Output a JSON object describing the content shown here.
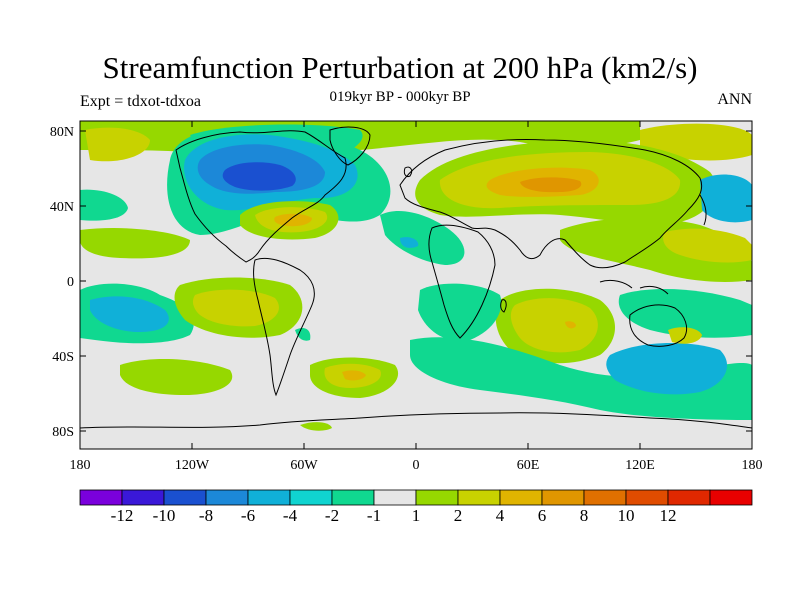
{
  "title": "Streamfunction Perturbation at 200 hPa (km2/s)",
  "subtitle": "019kyr BP - 000kyr BP",
  "left_label": "Expt = tdxot-tdxoa",
  "right_label": "ANN",
  "y_axis": {
    "ticks": [
      "80N",
      "40N",
      "0",
      "40S",
      "80S"
    ]
  },
  "x_axis": {
    "ticks": [
      "180",
      "120W",
      "60W",
      "0",
      "60E",
      "120E",
      "180"
    ]
  },
  "colorbar": {
    "colors": [
      "#7a00dc",
      "#3a18d8",
      "#1a50d0",
      "#1c88d8",
      "#10b0d8",
      "#10d4d0",
      "#10d890",
      "#e6e6e6",
      "#96d800",
      "#c8d200",
      "#e0b400",
      "#e09600",
      "#e07000",
      "#e04c00",
      "#e02800",
      "#e80000"
    ],
    "labels": [
      "-12",
      "-10",
      "-8",
      "-6",
      "-4",
      "-2",
      "-1",
      "1",
      "2",
      "4",
      "6",
      "8",
      "10",
      "12"
    ]
  },
  "colors": {
    "background": "#e6e6e6",
    "coastline": "#000000"
  }
}
